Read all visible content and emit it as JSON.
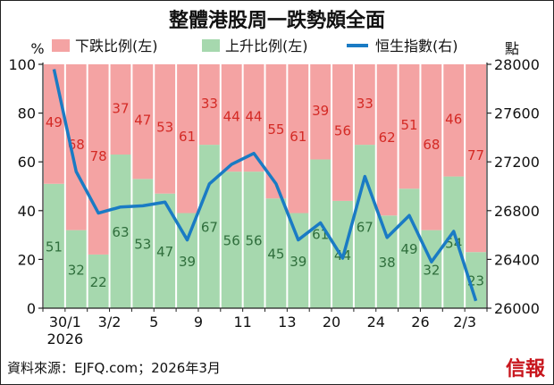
{
  "chart_data": {
    "type": "bar",
    "title": "整體港股周一跌勢頗全面",
    "left_axis_unit": "%",
    "right_axis_unit": "點",
    "legend": {
      "declining": "下跌比例(左)",
      "advancing": "上升比例(左)",
      "index": "恒生指數(右)"
    },
    "categories": [
      "30/1",
      "",
      "",
      "3/2",
      "",
      "5",
      "",
      "9",
      "",
      "11",
      "",
      "13",
      "",
      "20",
      "",
      "24",
      "",
      "26",
      "",
      "2/3"
    ],
    "x_tick_labels": [
      {
        "label": "30/1",
        "sub": "2026",
        "index": 1
      },
      {
        "label": "3/2",
        "index": 3
      },
      {
        "label": "5",
        "index": 5
      },
      {
        "label": "9",
        "index": 7
      },
      {
        "label": "11",
        "index": 9
      },
      {
        "label": "13",
        "index": 11
      },
      {
        "label": "20",
        "index": 13
      },
      {
        "label": "24",
        "index": 15
      },
      {
        "label": "26",
        "index": 17
      },
      {
        "label": "2/3",
        "index": 19
      }
    ],
    "series": [
      {
        "name": "下跌比例(左)",
        "axis": "left",
        "values": [
          49,
          68,
          78,
          37,
          47,
          53,
          61,
          33,
          44,
          44,
          55,
          61,
          39,
          56,
          33,
          62,
          51,
          68,
          46,
          77
        ]
      },
      {
        "name": "上升比例(左)",
        "axis": "left",
        "values": [
          51,
          32,
          22,
          63,
          53,
          47,
          39,
          67,
          56,
          56,
          45,
          39,
          61,
          44,
          67,
          38,
          49,
          32,
          54,
          23
        ]
      },
      {
        "name": "恒生指數(右)",
        "axis": "right",
        "type": "line",
        "values": [
          27960,
          27120,
          26780,
          26830,
          26840,
          26870,
          26560,
          27020,
          27180,
          27270,
          27020,
          26560,
          26700,
          26410,
          27080,
          26580,
          26760,
          26380,
          26630,
          26060
        ]
      }
    ],
    "left_ticks": [
      0,
      20,
      40,
      60,
      80,
      100
    ],
    "right_ticks": [
      26000,
      26400,
      26800,
      27200,
      27600,
      28000
    ],
    "ylim_left": [
      0,
      100
    ],
    "ylim_right": [
      26000,
      28000
    ],
    "colors": {
      "declining": "#f4a3a3",
      "advancing": "#a6d8ae",
      "line": "#1a7bc4",
      "declining_label": "#d42a25",
      "advancing_label": "#2f6e3c",
      "plot_bg": "#ffffff",
      "frame_border": "#222222",
      "divider": "#ffffff"
    }
  },
  "source_note": "資料來源：EJFQ.com；2026年3月",
  "logo_text": "信報"
}
